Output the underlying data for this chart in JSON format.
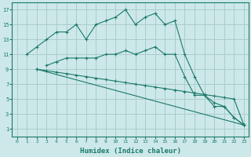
{
  "bg_color": "#cde8e8",
  "grid_color": "#aacccc",
  "line_color": "#1a7a6a",
  "xlabel": "Humidex (Indice chaleur)",
  "xlim": [
    -0.5,
    23.5
  ],
  "ylim": [
    0,
    18
  ],
  "xticks": [
    0,
    1,
    2,
    3,
    4,
    5,
    6,
    7,
    8,
    9,
    10,
    11,
    12,
    13,
    14,
    15,
    16,
    17,
    18,
    19,
    20,
    21,
    22,
    23
  ],
  "yticks": [
    1,
    3,
    5,
    7,
    9,
    11,
    13,
    15,
    17
  ],
  "line1_x": [
    1,
    2,
    3,
    4,
    5,
    6,
    7,
    8,
    9,
    10,
    11,
    12,
    13,
    14,
    15,
    16,
    17,
    18,
    19,
    20,
    21,
    22,
    23
  ],
  "line1_y": [
    11,
    12,
    13,
    14,
    14,
    15,
    13,
    15,
    15.5,
    16,
    17,
    15,
    16,
    16.5,
    15,
    15.5,
    11,
    8,
    5.5,
    4.5,
    4,
    2.5,
    1.5
  ],
  "line2_x": [
    3,
    4,
    5,
    6,
    7,
    8,
    9,
    10,
    11,
    12,
    13,
    14,
    15,
    16,
    17,
    18,
    19,
    20,
    21,
    22,
    23
  ],
  "line2_y": [
    9.5,
    10,
    10.5,
    10.5,
    10.5,
    10.5,
    11,
    11,
    11.5,
    11,
    11.5,
    12,
    11,
    11,
    8,
    5.5,
    5.5,
    4,
    4,
    2.5,
    1.5
  ],
  "line3_x": [
    2,
    3,
    4,
    5,
    6,
    7,
    8,
    9,
    10,
    11,
    12,
    13,
    14,
    15,
    16,
    17,
    18,
    19,
    20,
    21,
    22,
    23
  ],
  "line3_y": [
    9,
    8.8,
    8.6,
    8.4,
    8.2,
    8.0,
    7.8,
    7.6,
    7.4,
    7.2,
    7.0,
    6.8,
    6.6,
    6.4,
    6.2,
    6.0,
    5.8,
    5.6,
    5.4,
    5.2,
    5.0,
    1.5
  ],
  "line4_x": [
    2,
    23
  ],
  "line4_y": [
    9,
    1.5
  ]
}
